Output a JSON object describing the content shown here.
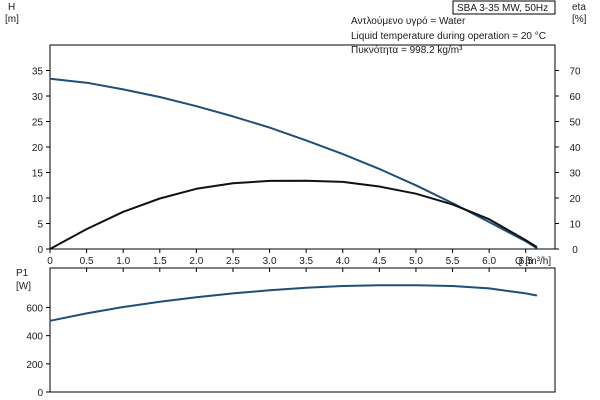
{
  "chart_data": [
    {
      "type": "line",
      "title": "SBA 3-35 MW, 50Hz",
      "annotations": [
        "Αντλούμενο υγρό = Water",
        "Liquid temperature during operation = 20 °C",
        "Πυκνότητα = 998.2 kg/m³"
      ],
      "xlabel": "Q [m³/h]",
      "xlim": [
        0,
        6.9
      ],
      "xticks": [
        "0",
        "0.5",
        "1.0",
        "1.5",
        "2.0",
        "2.5",
        "3.0",
        "3.5",
        "4.0",
        "4.5",
        "5.0",
        "5.5",
        "6.0",
        "6.5"
      ],
      "ylabel_left": [
        "H",
        "[m]"
      ],
      "ylim_left": [
        0,
        40
      ],
      "yticks_left": [
        "0",
        "5",
        "10",
        "15",
        "20",
        "25",
        "30",
        "35"
      ],
      "ylabel_right": [
        "eta",
        "[%]"
      ],
      "ylim_right": [
        0,
        80
      ],
      "yticks_right": [
        "0",
        "10",
        "20",
        "30",
        "40",
        "50",
        "60",
        "70"
      ],
      "grid": false,
      "series": [
        {
          "axis": "left",
          "color": "#1f4e79",
          "x": [
            0,
            0.5,
            1.0,
            1.5,
            2.0,
            2.5,
            3.0,
            3.5,
            4.0,
            4.5,
            5.0,
            5.5,
            6.0,
            6.5,
            6.65
          ],
          "y": [
            33.4,
            32.6,
            31.3,
            29.8,
            28.0,
            26.0,
            23.8,
            21.3,
            18.6,
            15.7,
            12.5,
            9.0,
            5.3,
            1.5,
            0.2
          ]
        },
        {
          "axis": "right",
          "color": "#111111",
          "x": [
            0,
            0.5,
            1.0,
            1.5,
            2.0,
            2.5,
            3.0,
            3.5,
            4.0,
            4.5,
            5.0,
            5.5,
            6.0,
            6.5,
            6.65
          ],
          "y": [
            0,
            7.8,
            14.6,
            19.8,
            23.6,
            25.8,
            26.7,
            26.8,
            26.3,
            24.5,
            21.7,
            17.5,
            11.7,
            3.5,
            0.8
          ]
        }
      ]
    },
    {
      "type": "line",
      "ylabel": [
        "P1",
        "[W]"
      ],
      "ylim": [
        0,
        880
      ],
      "yticks": [
        "0",
        "200",
        "400",
        "600"
      ],
      "xlim": [
        0,
        6.9
      ],
      "grid": false,
      "series": [
        {
          "axis": "left",
          "color": "#1f4e79",
          "x": [
            0,
            0.5,
            1.0,
            1.5,
            2.0,
            2.5,
            3.0,
            3.5,
            4.0,
            4.5,
            5.0,
            5.5,
            6.0,
            6.5,
            6.65
          ],
          "y": [
            505,
            558,
            603,
            640,
            672,
            700,
            722,
            740,
            752,
            758,
            758,
            752,
            735,
            700,
            685
          ]
        }
      ]
    }
  ]
}
